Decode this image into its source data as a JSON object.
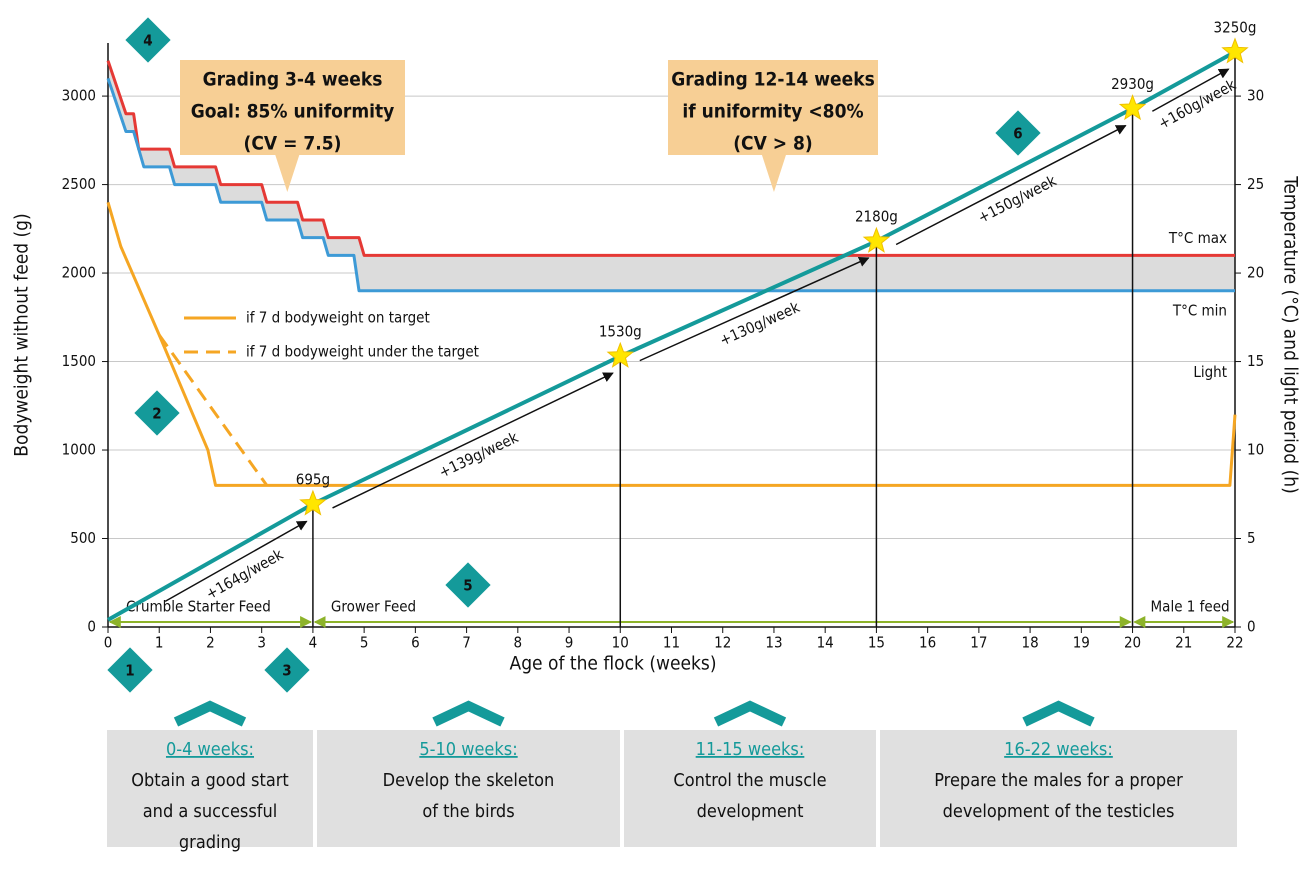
{
  "chart_data": {
    "type": "line",
    "x_label": "Age of the flock (weeks)",
    "y_label": "Bodyweight without feed (g)",
    "y2_label": "Temperature (°C) and light period (h)",
    "xlim": [
      0,
      22
    ],
    "xticks": [
      0,
      1,
      2,
      3,
      4,
      5,
      6,
      7,
      8,
      9,
      10,
      11,
      12,
      13,
      14,
      15,
      16,
      17,
      18,
      19,
      20,
      21,
      22
    ],
    "ylim": [
      0,
      3300
    ],
    "yticks": [
      0,
      500,
      1000,
      1500,
      2000,
      2500,
      3000
    ],
    "y2lim": [
      0,
      33
    ],
    "y2ticks": [
      0,
      5,
      10,
      15,
      20,
      25,
      30
    ],
    "grid": true,
    "series": [
      {
        "name": "T°C max",
        "color": "#e53935",
        "axis": "y2",
        "x": [
          0,
          0.35,
          0.5,
          0.6,
          1.2,
          1.3,
          2.1,
          2.2,
          3,
          3.1,
          3.7,
          3.8,
          4.2,
          4.3,
          4.9,
          5,
          22
        ],
        "values": [
          32,
          29,
          29,
          27,
          27,
          26,
          26,
          25,
          25,
          24,
          24,
          23,
          23,
          22,
          22,
          21,
          21
        ]
      },
      {
        "name": "T°C min",
        "color": "#3d9ad6",
        "axis": "y2",
        "x": [
          0,
          0.35,
          0.5,
          0.7,
          1.2,
          1.3,
          2.1,
          2.2,
          3,
          3.1,
          3.7,
          3.8,
          4.2,
          4.3,
          4.8,
          4.9,
          22
        ],
        "values": [
          31,
          28,
          28,
          26,
          26,
          25,
          25,
          24,
          24,
          23,
          23,
          22,
          22,
          21,
          21,
          19,
          19
        ]
      },
      {
        "name": "Light",
        "color": "#f5a623",
        "axis": "y2",
        "x": [
          0,
          0.25,
          1,
          1.95,
          2.1,
          21.9,
          22
        ],
        "values": [
          24,
          21.5,
          16.5,
          10,
          8,
          8,
          12
        ]
      },
      {
        "color": "#f5a623",
        "axis": "y2",
        "dash": true,
        "x": [
          1,
          3.1
        ],
        "values": [
          16.5,
          8
        ]
      },
      {
        "color": "#149a9a",
        "star_color": "#ffe600",
        "x": [
          0,
          4,
          10,
          15,
          20,
          22
        ],
        "values": [
          40,
          695,
          1530,
          2180,
          2930,
          3250
        ],
        "value_labels": [
          null,
          "695g",
          "1530g",
          "2180g",
          "2930g",
          "3250g"
        ],
        "rates": [
          "+164g/week",
          "+139g/week",
          "+130g/week",
          "+150g/week",
          "+160g/week"
        ]
      }
    ],
    "legend": [
      {
        "label": "if 7 d bodyweight on target",
        "color": "#f5a623",
        "dash": false
      },
      {
        "label": "if 7 d bodyweight under the target",
        "color": "#f5a623",
        "dash": true
      }
    ],
    "band_color": "#dcdcdc",
    "feeds": [
      {
        "label": "Crumble Starter Feed",
        "from": 0,
        "to": 4
      },
      {
        "label": "Grower Feed",
        "from": 4,
        "to": 20
      },
      {
        "label": "Male 1 feed",
        "from": 20,
        "to": 22
      }
    ],
    "feed_color": "#8db32a",
    "callouts": [
      {
        "lines": [
          "Grading 3-4 weeks",
          "Goal: 85% uniformity",
          "(CV = 7.5)"
        ],
        "x": 3.5
      },
      {
        "lines": [
          "Grading 12-14 weeks",
          "if uniformity <80%",
          "(CV > 8)"
        ],
        "x": 13
      }
    ],
    "badges": [
      "1",
      "2",
      "3",
      "4",
      "5",
      "6"
    ]
  },
  "phases": [
    {
      "title": "0-4 weeks:",
      "text": [
        "Obtain a good start",
        "and a successful",
        "grading"
      ]
    },
    {
      "title": "5-10 weeks:",
      "text": [
        "Develop the skeleton",
        "of the birds"
      ]
    },
    {
      "title": "11-15 weeks:",
      "text": [
        "Control the muscle",
        "development"
      ]
    },
    {
      "title": "16-22 weeks:",
      "text": [
        "Prepare the males for a proper",
        "development of the testicles"
      ]
    }
  ]
}
